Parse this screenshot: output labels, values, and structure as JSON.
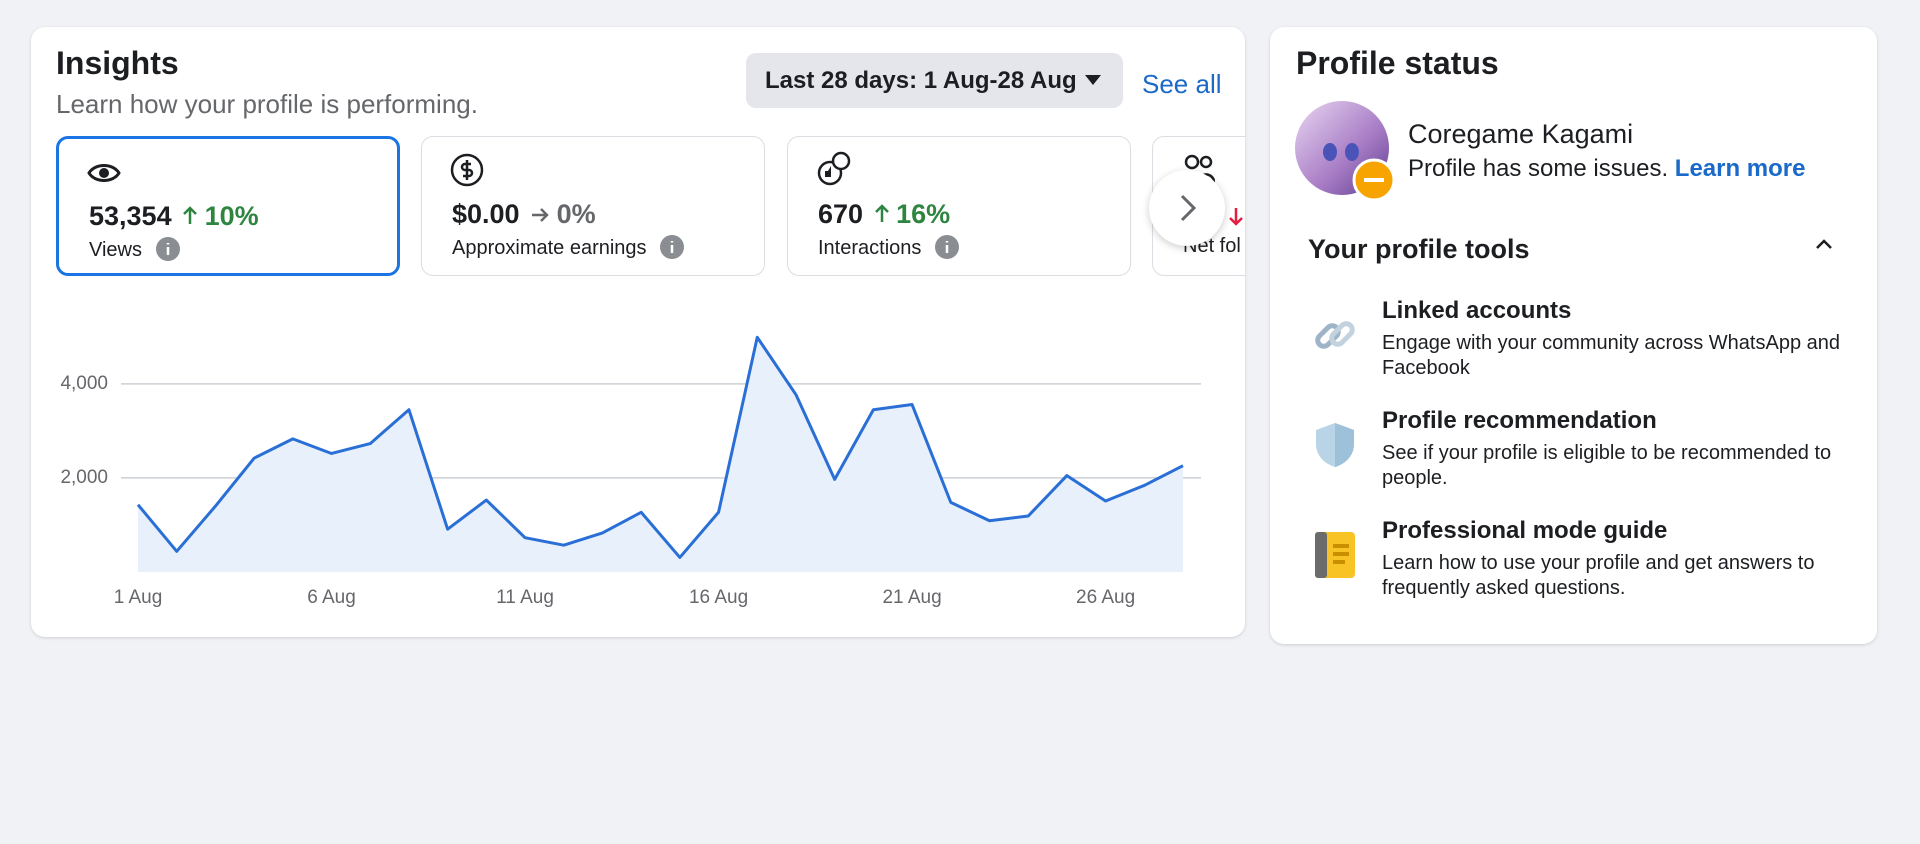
{
  "insights": {
    "title": "Insights",
    "subtitle": "Learn how your profile is performing.",
    "date_range": "Last 28 days: 1 Aug-28 Aug",
    "see_all": "See all",
    "metrics": [
      {
        "value": "53,354",
        "change": "10%",
        "label": "Views"
      },
      {
        "value": "$0.00",
        "change": "0%",
        "label": "Approximate earnings"
      },
      {
        "value": "670",
        "change": "16%",
        "label": "Interactions"
      },
      {
        "label": "Net fol"
      }
    ]
  },
  "chart_data": {
    "type": "line",
    "color": "#2a6fd6",
    "area_color": "#e8f0fc",
    "categories": [
      "1 Aug",
      null,
      null,
      null,
      null,
      "6 Aug",
      null,
      null,
      null,
      null,
      "11 Aug",
      null,
      null,
      null,
      null,
      "16 Aug",
      null,
      null,
      null,
      null,
      "21 Aug",
      null,
      null,
      null,
      null,
      "26 Aug",
      null,
      null
    ],
    "values": [
      1430,
      440,
      1400,
      2420,
      2830,
      2520,
      2730,
      3450,
      910,
      1530,
      730,
      570,
      830,
      1270,
      310,
      1270,
      4990,
      3770,
      1970,
      3450,
      3560,
      1480,
      1090,
      1190,
      2050,
      1510,
      1840,
      2260
    ],
    "ylim": [
      0,
      5400
    ],
    "yticks": [
      {
        "value": 2000,
        "label": "2,000"
      },
      {
        "value": 4000,
        "label": "4,000"
      }
    ],
    "grid": true
  },
  "profile_status": {
    "title": "Profile status",
    "name": "Coregame Kagami",
    "status": "Profile has some issues.",
    "learn_more": "Learn more",
    "tools_title": "Your profile tools",
    "tools": [
      {
        "title": "Linked accounts",
        "description": "Engage with your community across WhatsApp and Facebook"
      },
      {
        "title": "Profile recommendation",
        "description": "See if your profile is eligible to be recommended to people."
      },
      {
        "title": "Professional mode guide",
        "description": "Learn how to use your profile and get answers to frequently asked questions."
      }
    ]
  }
}
